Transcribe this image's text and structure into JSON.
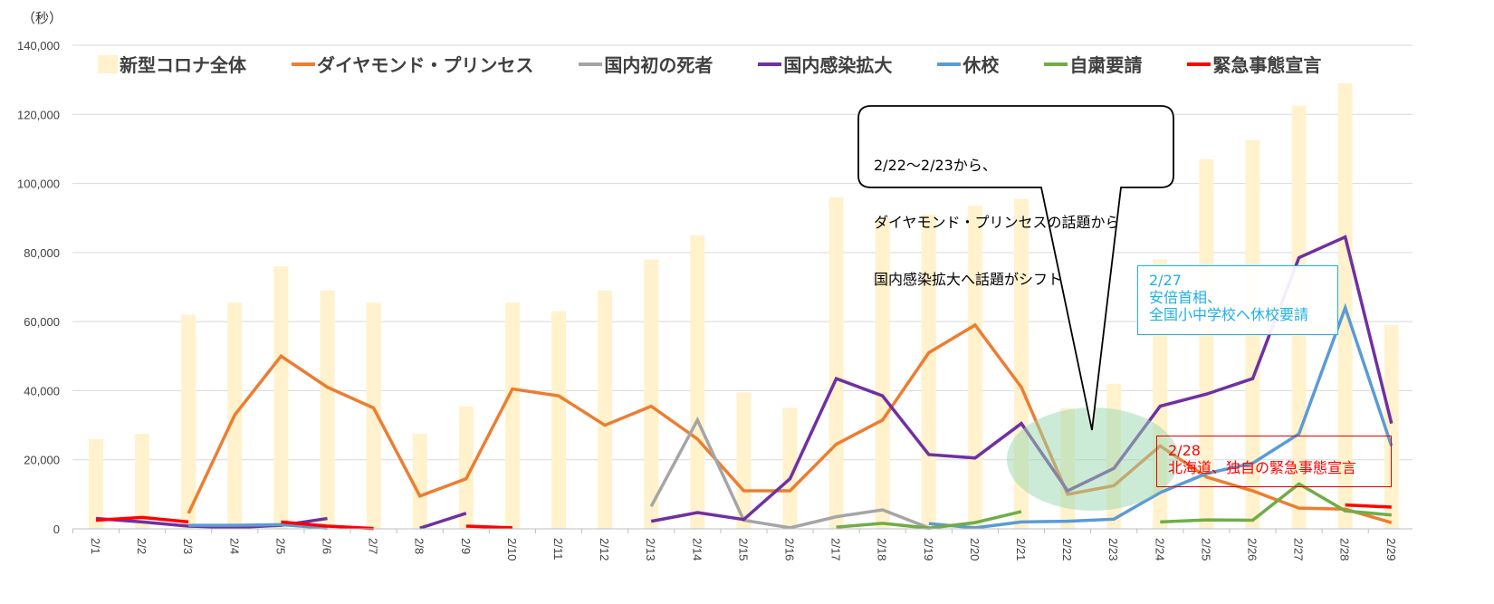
{
  "chart_data": {
    "type": "bar+line",
    "unit_label": "（秒）",
    "ylim": [
      0,
      140000
    ],
    "yticks": [
      0,
      20000,
      40000,
      60000,
      80000,
      100000,
      120000,
      140000
    ],
    "ytick_labels": [
      "0",
      "20,000",
      "40,000",
      "60,000",
      "80,000",
      "100,000",
      "120,000",
      "140,000"
    ],
    "grid": true,
    "legend_position": "top",
    "categories": [
      "2/1",
      "2/2",
      "2/3",
      "2/4",
      "2/5",
      "2/6",
      "2/7",
      "2/8",
      "2/9",
      "2/10",
      "2/11",
      "2/12",
      "2/13",
      "2/14",
      "2/15",
      "2/16",
      "2/17",
      "2/18",
      "2/19",
      "2/20",
      "2/21",
      "2/22",
      "2/23",
      "2/24",
      "2/25",
      "2/26",
      "2/27",
      "2/28",
      "2/29"
    ],
    "bar_series": {
      "name": "新型コロナ全体",
      "color": "#fff2cc",
      "values": [
        26000,
        27500,
        62000,
        65500,
        76000,
        69000,
        65500,
        27500,
        35500,
        65500,
        63000,
        69000,
        78000,
        85000,
        39500,
        35000,
        96000,
        90000,
        91000,
        93500,
        95500,
        35000,
        42000,
        78000,
        107000,
        112500,
        122500,
        129000,
        59000
      ]
    },
    "series": [
      {
        "name": "ダイヤモンド・プリンセス",
        "color": "#ed7d31",
        "values": [
          null,
          null,
          4500,
          33000,
          50000,
          41000,
          35000,
          9500,
          14500,
          40500,
          38500,
          30000,
          35500,
          26000,
          11000,
          11000,
          24500,
          31500,
          51000,
          59000,
          41000,
          10000,
          12500,
          24000,
          15000,
          11000,
          6000,
          5700,
          1800
        ]
      },
      {
        "name": "国内初の死者",
        "color": "#a5a5a5",
        "values": [
          null,
          null,
          null,
          null,
          null,
          null,
          null,
          null,
          null,
          null,
          null,
          null,
          6500,
          31500,
          2500,
          300,
          3500,
          5500,
          300,
          null,
          null,
          null,
          null,
          null,
          null,
          null,
          null,
          null,
          null
        ]
      },
      {
        "name": "国内感染拡大",
        "color": "#7030a0",
        "values": [
          3000,
          2000,
          800,
          400,
          1000,
          3000,
          null,
          200,
          4500,
          null,
          null,
          null,
          2200,
          4700,
          2700,
          14500,
          43500,
          38500,
          21500,
          20500,
          30500,
          11000,
          17500,
          35500,
          39000,
          43500,
          78500,
          84500,
          30500
        ]
      },
      {
        "name": "休校",
        "color": "#5b9bd5",
        "values": [
          null,
          null,
          1000,
          1000,
          1200,
          200,
          null,
          null,
          null,
          null,
          null,
          null,
          null,
          null,
          null,
          null,
          null,
          null,
          1500,
          300,
          2000,
          2200,
          2800,
          10500,
          16000,
          19000,
          27500,
          64000,
          24000
        ]
      },
      {
        "name": "自粛要請",
        "color": "#70ad47",
        "values": [
          null,
          null,
          null,
          null,
          null,
          null,
          null,
          null,
          null,
          null,
          null,
          null,
          null,
          null,
          null,
          null,
          500,
          1600,
          200,
          1800,
          5000,
          null,
          null,
          2000,
          2600,
          2500,
          13000,
          5200,
          4000
        ]
      },
      {
        "name": "緊急事態宣言",
        "color": "#ff0000",
        "values": [
          2500,
          3300,
          2000,
          null,
          2000,
          800,
          100,
          null,
          800,
          300,
          null,
          null,
          null,
          null,
          null,
          null,
          null,
          null,
          null,
          null,
          null,
          null,
          null,
          null,
          null,
          null,
          null,
          6900,
          6300
        ]
      }
    ],
    "annotations": [
      {
        "id": "callout",
        "lines": [
          "2/22～2/23から、",
          "ダイヤモンド・プリンセスの話題から",
          "国内感染拡大へ話題がシフト"
        ],
        "points_to": "2/22-2/23"
      },
      {
        "id": "blue-note",
        "lines": [
          "2/27",
          "安倍首相、",
          "全国小中学校へ休校要請"
        ],
        "color": "#1fb0e6"
      },
      {
        "id": "red-note",
        "lines": [
          "2/28",
          "北海道、独自の緊急事態宣言"
        ],
        "color": "#ff0000"
      }
    ],
    "highlight": {
      "label": "2/22-2/23 shift region",
      "color": "#9ad8b0"
    }
  }
}
